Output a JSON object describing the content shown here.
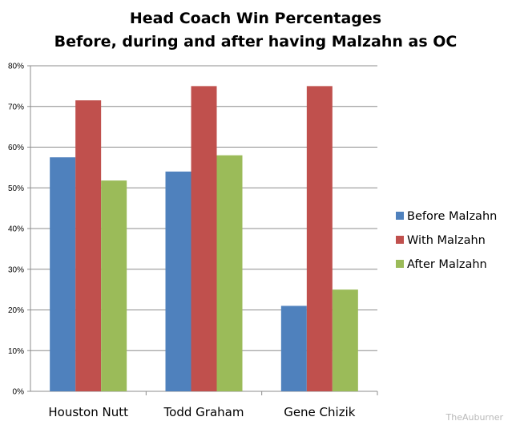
{
  "chart_data": {
    "type": "bar",
    "title": "Head Coach Win Percentages",
    "subtitle": "Before, during and after having Malzahn as OC",
    "categories": [
      "Houston Nutt",
      "Todd Graham",
      "Gene Chizik"
    ],
    "series": [
      {
        "name": "Before Malzahn",
        "color": "#4f81bd",
        "values": [
          57.5,
          54,
          21
        ]
      },
      {
        "name": "With Malzahn",
        "color": "#c0504d",
        "values": [
          71.5,
          75,
          75
        ]
      },
      {
        "name": "After Malzahn",
        "color": "#9bbb59",
        "values": [
          51.8,
          58,
          25
        ]
      }
    ],
    "ylim": [
      0,
      80
    ],
    "yticks": [
      "0%",
      "10%",
      "20%",
      "30%",
      "40%",
      "50%",
      "60%",
      "70%",
      "80%"
    ],
    "grid": true,
    "legend": "right"
  },
  "watermark": "TheAuburner"
}
